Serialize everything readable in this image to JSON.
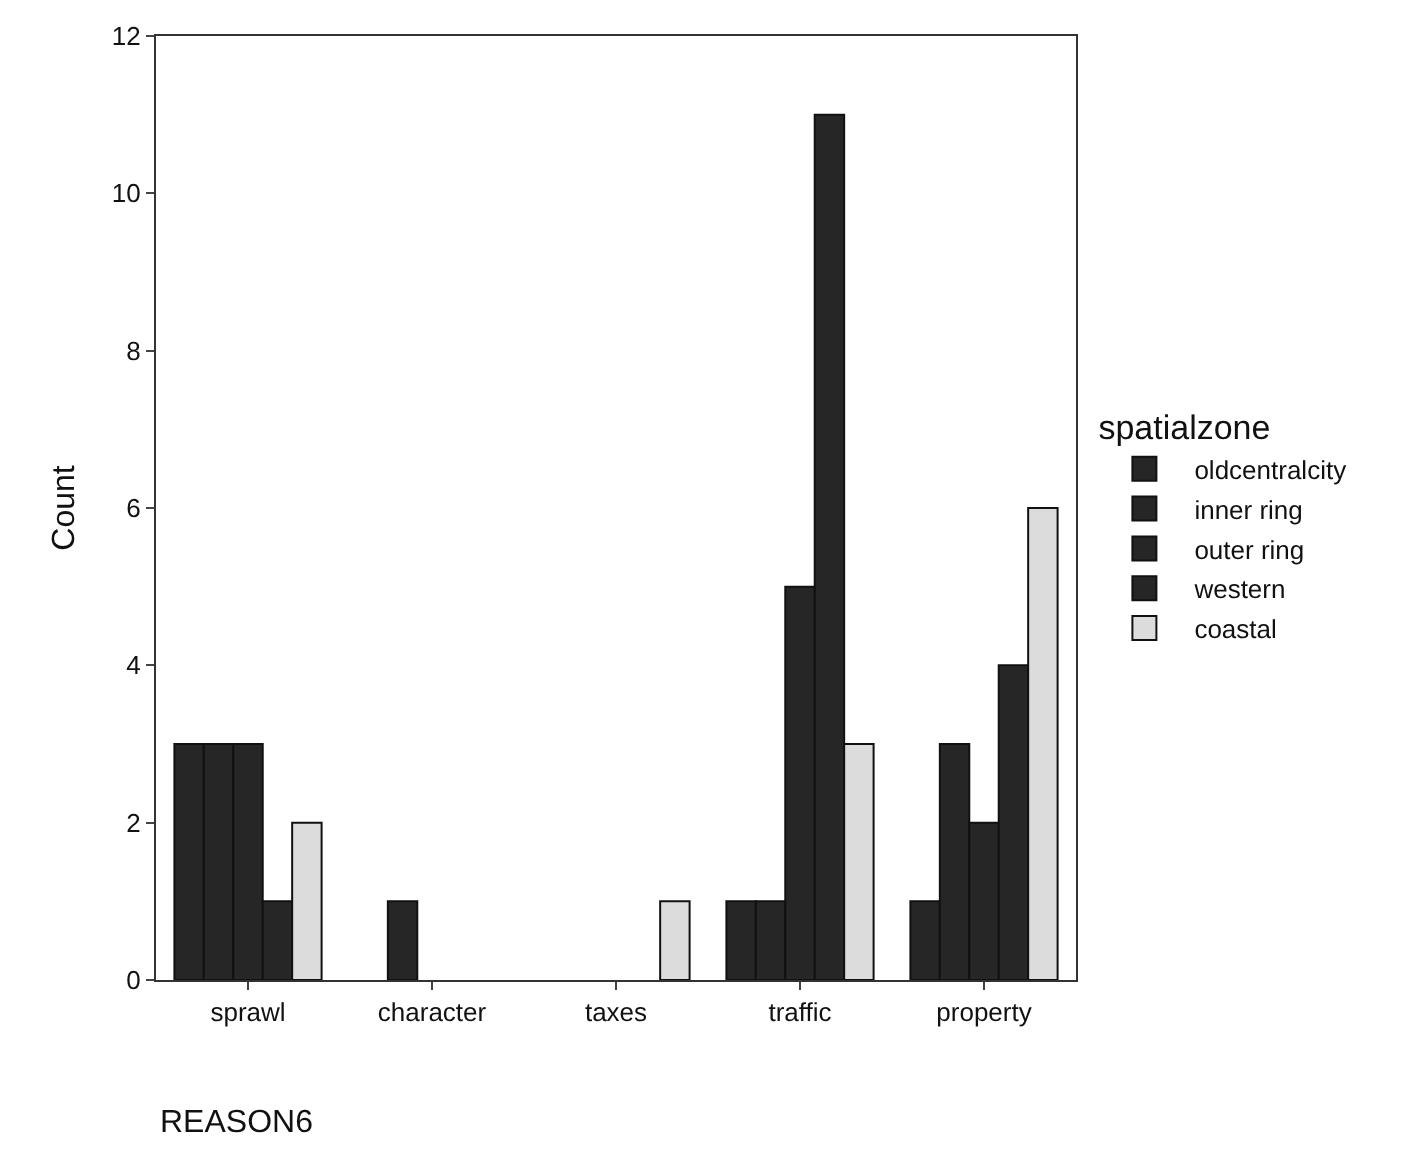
{
  "chart_data": {
    "type": "bar",
    "xlabel": "REASON6",
    "ylabel": "Count",
    "legend_title": "spatialzone",
    "legend": "right",
    "grid": false,
    "categories": [
      "sprawl",
      "character",
      "taxes",
      "traffic",
      "property"
    ],
    "ylim": [
      0,
      12
    ],
    "yticks": [
      0,
      2,
      4,
      6,
      8,
      10,
      12
    ],
    "series": [
      {
        "name": "oldcentralcity",
        "color": "#262626",
        "values": [
          3,
          0,
          0,
          1,
          1
        ]
      },
      {
        "name": "inner ring",
        "color": "#262626",
        "values": [
          3,
          1,
          0,
          1,
          3
        ]
      },
      {
        "name": "outer ring",
        "color": "#262626",
        "values": [
          3,
          0,
          0,
          5,
          2
        ]
      },
      {
        "name": "western",
        "color": "#262626",
        "values": [
          1,
          0,
          0,
          11,
          4
        ]
      },
      {
        "name": "coastal",
        "color": "#dcdcdc",
        "values": [
          2,
          0,
          1,
          3,
          6
        ]
      }
    ]
  }
}
